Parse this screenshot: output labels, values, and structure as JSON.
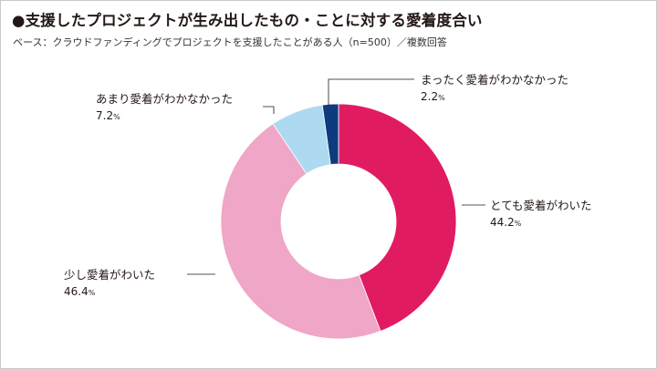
{
  "title": "●支援したプロジェクトが生み出したもの・ことに対する愛着度合い",
  "subtitle": "ベース：クラウドファンディングでプロジェクトを支援したことがある人（n=500）／複数回答",
  "chart_data": {
    "type": "pie",
    "style": "donut",
    "start": "top-center, clockwise",
    "slices": [
      {
        "label": "とても愛着がわいた",
        "value": 44.2,
        "display": "44.2",
        "color": "#e11b62"
      },
      {
        "label": "少し愛着がわいた",
        "value": 46.4,
        "display": "46.4",
        "color": "#f0a6c6"
      },
      {
        "label": "あまり愛着がわかなかった",
        "value": 7.2,
        "display": "7.2",
        "color": "#addaf1"
      },
      {
        "label": "まったく愛着がわかなかった",
        "value": 2.2,
        "display": "2.2",
        "color": "#0e3a7e"
      }
    ],
    "unit": "%"
  }
}
